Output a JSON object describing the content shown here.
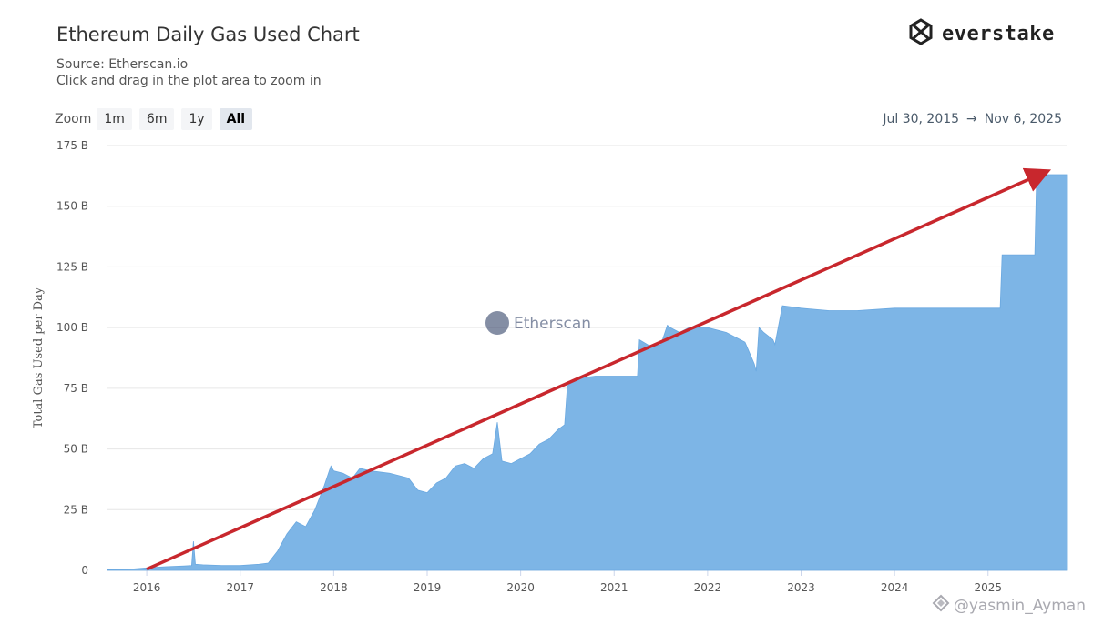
{
  "header": {
    "title": "Ethereum Daily Gas Used Chart",
    "source": "Source: Etherscan.io",
    "hint": "Click and drag in the plot area to zoom in"
  },
  "brand": {
    "name": "everstake",
    "icon": "everstake-logo-icon"
  },
  "zoom": {
    "label": "Zoom",
    "buttons": [
      "1m",
      "6m",
      "1y",
      "All"
    ],
    "active": "All"
  },
  "range": {
    "from": "Jul 30, 2015",
    "arrow": "→",
    "to": "Nov 6, 2025"
  },
  "watermark": {
    "center": "Etherscan",
    "corner": "@yasmin_Ayman"
  },
  "colors": {
    "area": "#7db5e6",
    "trend": "#c8272d",
    "grid": "#e6e6e6",
    "text": "#333333"
  },
  "chart_data": {
    "type": "area",
    "ylabel": "Total Gas Used per Day",
    "xlabel": "",
    "y_ticks": [
      "0",
      "25 B",
      "50 B",
      "75 B",
      "100 B",
      "125 B",
      "150 B",
      "175 B"
    ],
    "y_tick_values": [
      0,
      25,
      50,
      75,
      100,
      125,
      150,
      175
    ],
    "ylim": [
      0,
      175
    ],
    "x_ticks": [
      "2016",
      "2017",
      "2018",
      "2019",
      "2020",
      "2021",
      "2022",
      "2023",
      "2024",
      "2025"
    ],
    "x_tick_values": [
      2016.0,
      2017.0,
      2018.0,
      2019.0,
      2020.0,
      2021.0,
      2022.0,
      2023.0,
      2024.0,
      2025.0
    ],
    "xlim": [
      2015.58,
      2025.85
    ],
    "grid": true,
    "series": [
      {
        "values_unit": "billion gas",
        "x": [
          2015.58,
          2015.8,
          2016.0,
          2016.2,
          2016.4,
          2016.48,
          2016.5,
          2016.52,
          2016.6,
          2016.8,
          2017.0,
          2017.2,
          2017.3,
          2017.4,
          2017.5,
          2017.6,
          2017.7,
          2017.8,
          2017.9,
          2017.97,
          2018.0,
          2018.1,
          2018.2,
          2018.28,
          2018.4,
          2018.6,
          2018.8,
          2018.9,
          2019.0,
          2019.1,
          2019.2,
          2019.3,
          2019.4,
          2019.5,
          2019.6,
          2019.7,
          2019.75,
          2019.8,
          2019.9,
          2020.0,
          2020.1,
          2020.2,
          2020.3,
          2020.4,
          2020.47,
          2020.5,
          2020.6,
          2020.8,
          2021.0,
          2021.2,
          2021.25,
          2021.27,
          2021.4,
          2021.5,
          2021.57,
          2021.6,
          2021.7,
          2021.8,
          2022.0,
          2022.2,
          2022.3,
          2022.4,
          2022.5,
          2022.52,
          2022.55,
          2022.6,
          2022.7,
          2022.72,
          2022.8,
          2023.0,
          2023.3,
          2023.6,
          2024.0,
          2024.4,
          2024.8,
          2025.0,
          2025.13,
          2025.15,
          2025.3,
          2025.45,
          2025.5,
          2025.52,
          2025.85
        ],
        "values": [
          0.3,
          0.4,
          1,
          1.5,
          1.8,
          2,
          12,
          2.5,
          2.3,
          2,
          2,
          2.5,
          3,
          8,
          15,
          20,
          18,
          25,
          35,
          43,
          41,
          40,
          38,
          42,
          41,
          40,
          38,
          33,
          32,
          36,
          38,
          43,
          44,
          42,
          46,
          48,
          61,
          45,
          44,
          46,
          48,
          52,
          54,
          58,
          60,
          76,
          79,
          80,
          80,
          80,
          80,
          95,
          92,
          93,
          101,
          100,
          98,
          100,
          100,
          98,
          96,
          94,
          85,
          82,
          100,
          98,
          95,
          93,
          109,
          108,
          107,
          107,
          108,
          108,
          108,
          108,
          108,
          130,
          130,
          130,
          130,
          163,
          163
        ]
      }
    ],
    "annotations": [
      {
        "type": "arrow",
        "from": {
          "x": 2016.0,
          "y": 0.5
        },
        "to": {
          "x": 2025.55,
          "y": 163
        }
      }
    ]
  }
}
